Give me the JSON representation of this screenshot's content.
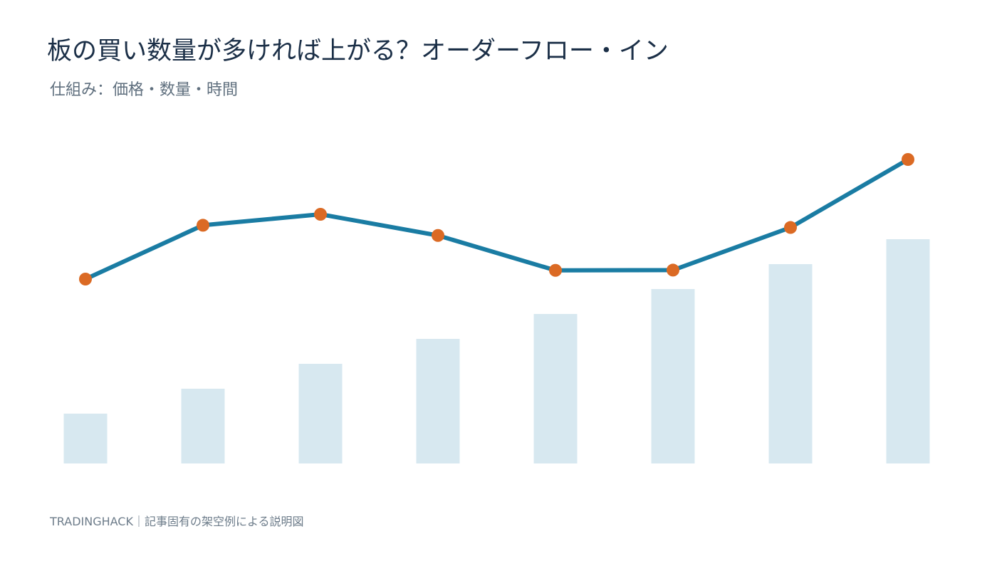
{
  "title": "板の買い数量が多ければ上がる？オーダーフロー・イン",
  "subtitle": "仕組み：価格・数量・時間",
  "footer": "TRADINGHACK｜記事固有の架空例による説明図",
  "colors": {
    "bar": "#d7e8f0",
    "line": "#1a7ca3",
    "marker": "#db6a24",
    "title": "#1b2f47",
    "subtitle": "#5f6f7e",
    "footer": "#6d7c8a"
  },
  "chart_data": {
    "type": "bar+line",
    "categories": [
      "",
      "",
      "",
      "",
      "",
      "",
      "",
      ""
    ],
    "series": [
      {
        "type": "bar",
        "values": [
          20,
          30,
          40,
          50,
          60,
          70,
          80,
          90
        ]
      },
      {
        "type": "line",
        "values": [
          74,
          95.6,
          100,
          91.5,
          77.5,
          77.6,
          94.7,
          122
        ]
      }
    ],
    "ylim": [
      0,
      140
    ],
    "grid": false,
    "legend": "none"
  }
}
